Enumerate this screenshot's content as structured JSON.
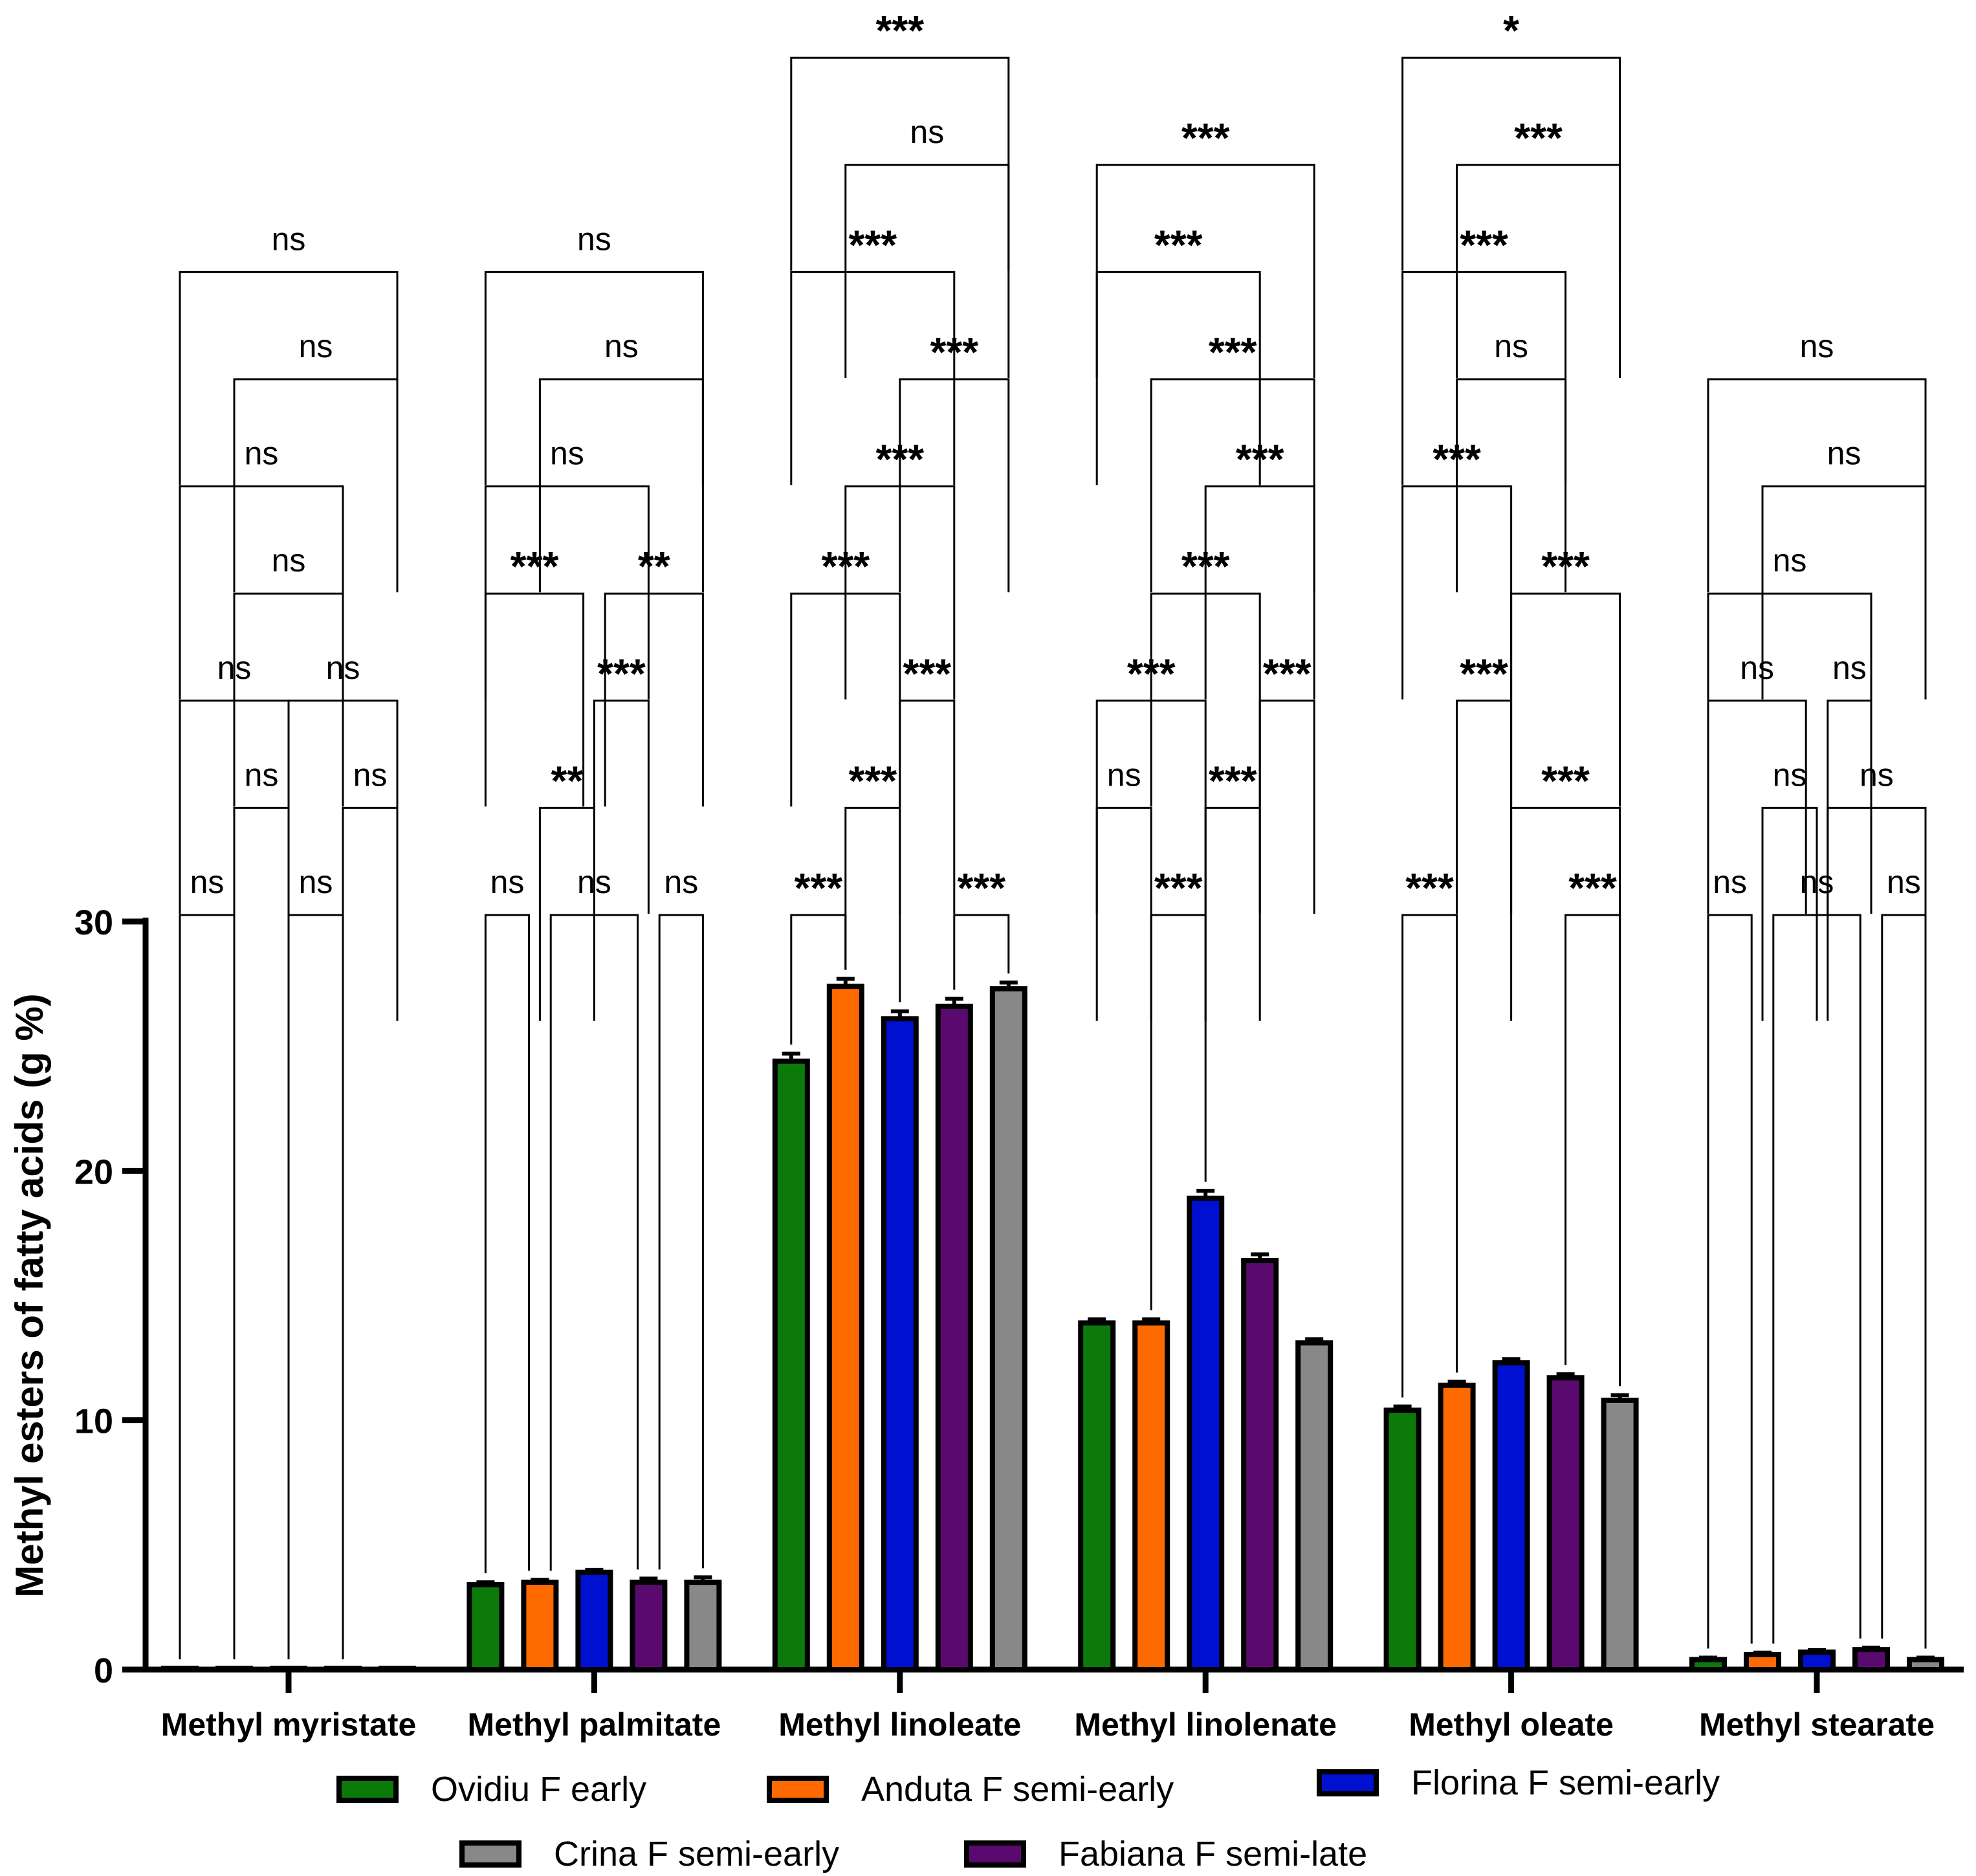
{
  "chart_data": {
    "type": "bar",
    "ylabel": "Methyl esters of fatty acids (g %)",
    "ylim": [
      0,
      30
    ],
    "yticks": [
      0,
      10,
      20,
      30
    ],
    "categories": [
      "Methyl myristate",
      "Methyl palmitate",
      "Methyl linoleate",
      "Methyl linolenate",
      "Methyl oleate",
      "Methyl stearate"
    ],
    "series": [
      {
        "name": "Ovidiu F early",
        "color": "#0b7a0b",
        "values": [
          0.03,
          3.4,
          24.4,
          13.9,
          10.4,
          0.4
        ],
        "errors": [
          0.02,
          0.1,
          0.3,
          0.15,
          0.15,
          0.08
        ]
      },
      {
        "name": "Anduta F semi-early",
        "color": "#ff6a00",
        "values": [
          0.03,
          3.5,
          27.4,
          13.9,
          11.4,
          0.6
        ],
        "errors": [
          0.02,
          0.1,
          0.3,
          0.15,
          0.15,
          0.08
        ]
      },
      {
        "name": "Florina F semi-early",
        "color": "#0010d0",
        "values": [
          0.03,
          3.9,
          26.1,
          18.9,
          12.3,
          0.7
        ],
        "errors": [
          0.02,
          0.1,
          0.3,
          0.3,
          0.15,
          0.08
        ]
      },
      {
        "name": "Fabiana F semi-late",
        "color": "#5a0a6e",
        "values": [
          0.03,
          3.5,
          26.6,
          16.4,
          11.7,
          0.8
        ],
        "errors": [
          0.02,
          0.15,
          0.3,
          0.25,
          0.15,
          0.08
        ]
      },
      {
        "name": "Crina F semi-early",
        "color": "#888888",
        "values": [
          0.03,
          3.5,
          27.3,
          13.1,
          10.8,
          0.4
        ],
        "errors": [
          0.02,
          0.2,
          0.25,
          0.15,
          0.2,
          0.08
        ]
      }
    ],
    "comparisons": [
      [
        {
          "a": 0,
          "b": 1,
          "level": 0,
          "label": "ns"
        },
        {
          "a": 2,
          "b": 3,
          "level": 0,
          "label": "ns"
        },
        {
          "a": 1,
          "b": 2,
          "level": 1,
          "label": "ns"
        },
        {
          "a": 3,
          "b": 4,
          "level": 1,
          "label": "ns"
        },
        {
          "a": 0,
          "b": 2,
          "level": 2,
          "label": "ns"
        },
        {
          "a": 2,
          "b": 4,
          "level": 2,
          "label": "ns"
        },
        {
          "a": 1,
          "b": 3,
          "level": 3,
          "label": "ns"
        },
        {
          "a": 0,
          "b": 3,
          "level": 4,
          "label": "ns"
        },
        {
          "a": 1,
          "b": 4,
          "level": 5,
          "label": "ns"
        },
        {
          "a": 0,
          "b": 4,
          "level": 6,
          "label": "ns"
        }
      ],
      [
        {
          "a": 0,
          "b": 0.8,
          "level": 0,
          "label": "ns"
        },
        {
          "a": 1.2,
          "b": 2.8,
          "level": 0,
          "label": "ns"
        },
        {
          "a": 3.2,
          "b": 4,
          "level": 0,
          "label": "ns"
        },
        {
          "a": 1,
          "b": 2,
          "level": 1,
          "label": "**"
        },
        {
          "a": 2,
          "b": 3,
          "level": 2,
          "label": "***"
        },
        {
          "a": 0,
          "b": 1.8,
          "level": 3,
          "label": "***"
        },
        {
          "a": 2.2,
          "b": 4,
          "level": 3,
          "label": "**"
        },
        {
          "a": 0,
          "b": 3,
          "level": 4,
          "label": "ns"
        },
        {
          "a": 1,
          "b": 4,
          "level": 5,
          "label": "ns"
        },
        {
          "a": 0,
          "b": 4,
          "level": 6,
          "label": "ns"
        }
      ],
      [
        {
          "a": 0,
          "b": 1,
          "level": 0,
          "label": "***"
        },
        {
          "a": 3,
          "b": 4,
          "level": 0,
          "label": "***"
        },
        {
          "a": 1,
          "b": 2,
          "level": 1,
          "label": "***"
        },
        {
          "a": 2,
          "b": 3,
          "level": 2,
          "label": "***"
        },
        {
          "a": 0,
          "b": 2,
          "level": 3,
          "label": "***"
        },
        {
          "a": 1,
          "b": 3,
          "level": 4,
          "label": "***"
        },
        {
          "a": 2,
          "b": 4,
          "level": 5,
          "label": "***"
        },
        {
          "a": 0,
          "b": 3,
          "level": 6,
          "label": "***"
        },
        {
          "a": 1,
          "b": 4,
          "level": 7,
          "label": "ns"
        },
        {
          "a": 0,
          "b": 4,
          "level": 8,
          "label": "***"
        }
      ],
      [
        {
          "a": 1,
          "b": 2,
          "level": 0,
          "label": "***"
        },
        {
          "a": 0,
          "b": 1,
          "level": 1,
          "label": "ns"
        },
        {
          "a": 2,
          "b": 3,
          "level": 1,
          "label": "***"
        },
        {
          "a": 0,
          "b": 2,
          "level": 2,
          "label": "***"
        },
        {
          "a": 3,
          "b": 4,
          "level": 2,
          "label": "***"
        },
        {
          "a": 1,
          "b": 3,
          "level": 3,
          "label": "***"
        },
        {
          "a": 2,
          "b": 4,
          "level": 4,
          "label": "***"
        },
        {
          "a": 1,
          "b": 4,
          "level": 5,
          "label": "***"
        },
        {
          "a": 0,
          "b": 3,
          "level": 6,
          "label": "***"
        },
        {
          "a": 0,
          "b": 4,
          "level": 7,
          "label": "***"
        }
      ],
      [
        {
          "a": 0,
          "b": 1,
          "level": 0,
          "label": "***"
        },
        {
          "a": 3,
          "b": 4,
          "level": 0,
          "label": "***"
        },
        {
          "a": 2,
          "b": 4,
          "level": 1,
          "label": "***"
        },
        {
          "a": 1,
          "b": 2,
          "level": 2,
          "label": "***"
        },
        {
          "a": 2,
          "b": 4,
          "level": 3,
          "label": "***"
        },
        {
          "a": 0,
          "b": 2,
          "level": 4,
          "label": "***"
        },
        {
          "a": 1,
          "b": 3,
          "level": 5,
          "label": "ns"
        },
        {
          "a": 0,
          "b": 3,
          "level": 6,
          "label": "***"
        },
        {
          "a": 1,
          "b": 4,
          "level": 7,
          "label": "***"
        },
        {
          "a": 0,
          "b": 4,
          "level": 8,
          "label": "*"
        }
      ],
      [
        {
          "a": 0,
          "b": 0.8,
          "level": 0,
          "label": "ns"
        },
        {
          "a": 1.2,
          "b": 2.8,
          "level": 0,
          "label": "ns"
        },
        {
          "a": 3.2,
          "b": 4,
          "level": 0,
          "label": "ns"
        },
        {
          "a": 1,
          "b": 2,
          "level": 1,
          "label": "ns"
        },
        {
          "a": 2.2,
          "b": 4,
          "level": 1,
          "label": "ns"
        },
        {
          "a": 0,
          "b": 1.8,
          "level": 2,
          "label": "ns"
        },
        {
          "a": 2.2,
          "b": 3,
          "level": 2,
          "label": "ns"
        },
        {
          "a": 0,
          "b": 3,
          "level": 3,
          "label": "ns"
        },
        {
          "a": 1,
          "b": 4,
          "level": 4,
          "label": "ns"
        },
        {
          "a": 0,
          "b": 4,
          "level": 5,
          "label": "ns"
        }
      ]
    ]
  },
  "legend": {
    "items": [
      {
        "label": "Ovidiu F early",
        "color": "#0b7a0b"
      },
      {
        "label": "Anduta F semi-early",
        "color": "#ff6a00"
      },
      {
        "label": "Florina F semi-early",
        "color": "#0010d0"
      },
      {
        "label": "Crina F semi-early",
        "color": "#888888"
      },
      {
        "label": "Fabiana F semi-late",
        "color": "#5a0a6e"
      }
    ]
  }
}
